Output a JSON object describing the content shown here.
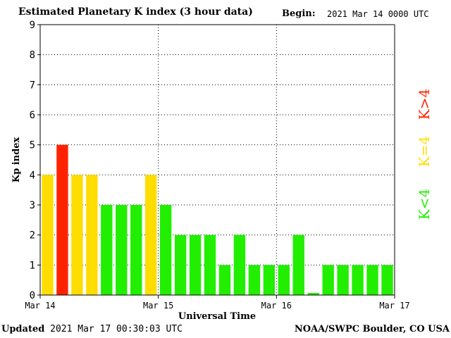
{
  "header": {
    "title": "Estimated Planetary K index (3 hour data)",
    "begin_label": "Begin:",
    "begin_value": "2021 Mar 14 0000 UTC"
  },
  "footer": {
    "updated_label": "Updated",
    "updated_value": "2021 Mar 17 00:30:03 UTC",
    "source": "NOAA/SWPC Boulder, CO USA"
  },
  "legend": [
    {
      "label": "K>4",
      "color": "#ff2200"
    },
    {
      "label": "K=4",
      "color": "#ffdd00"
    },
    {
      "label": "K<4",
      "color": "#22ee00"
    }
  ],
  "chart_data": {
    "type": "bar",
    "xlabel": "Universal Time",
    "ylabel": "Kp index",
    "ylim": [
      0,
      9
    ],
    "yticks": [
      0,
      1,
      2,
      3,
      4,
      5,
      6,
      7,
      8,
      9
    ],
    "x_tick_labels": [
      "Mar 14",
      "Mar 15",
      "Mar 16",
      "Mar 17"
    ],
    "grid": "dotted",
    "bins_per_day": 8,
    "values": [
      4,
      5,
      4,
      4,
      3,
      3,
      3,
      4,
      3,
      2,
      2,
      2,
      1,
      2,
      1,
      1,
      1,
      2,
      0.07,
      1,
      1,
      1,
      1,
      1
    ],
    "colors": {
      "above4": "#ff2200",
      "equal4": "#ffdd00",
      "below4": "#22ee00"
    }
  }
}
